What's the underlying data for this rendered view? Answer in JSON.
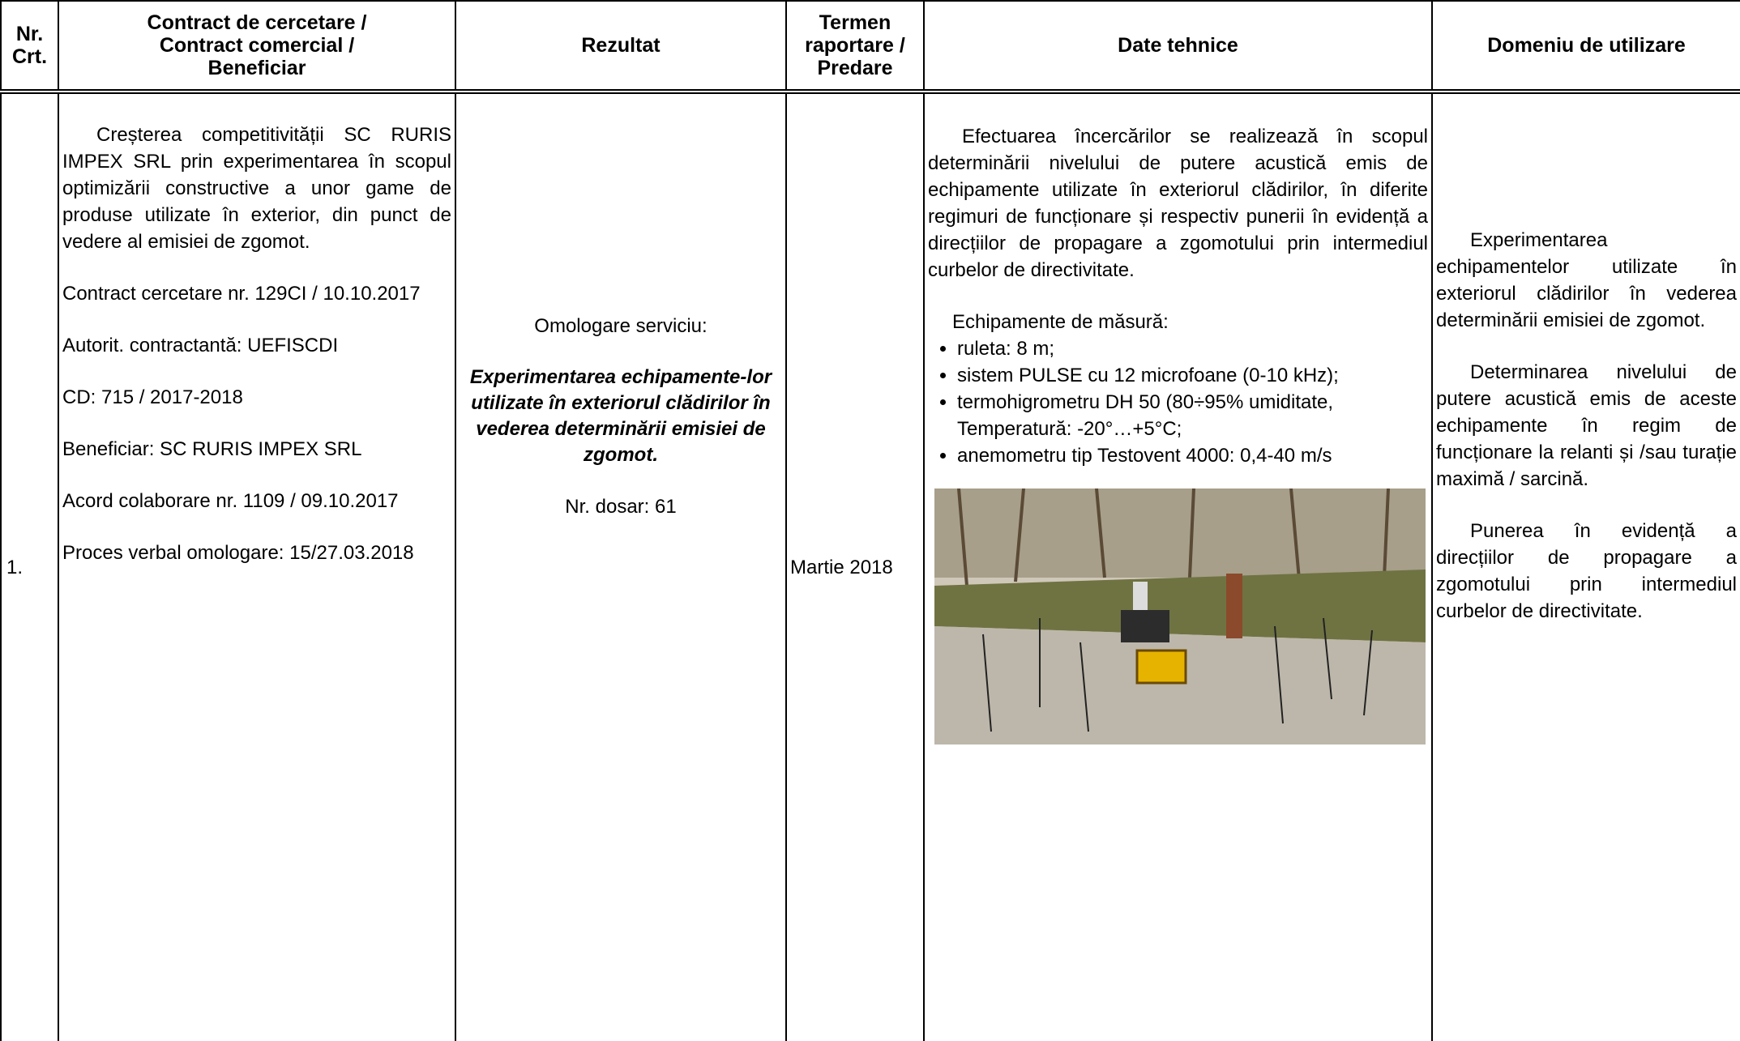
{
  "header": {
    "columns": [
      "Nr. Crt.",
      "Contract de cercetare / Contract comercial / Beneficiar",
      "Rezultat",
      "Termen raportare / Predare",
      "Date tehnice",
      "Domeniu de utilizare"
    ]
  },
  "row": {
    "number": "1.",
    "contract": [
      "Creșterea competitivității SC RURIS IMPEX SRL prin experimentarea în scopul optimizării constructive a unor game de produse utilizate în exterior, din punct de vedere al emisiei de zgomot.",
      "Contract cercetare nr. 129CI / 10.10.2017",
      "Autorit. contractantă: UEFISCDI",
      "CD: 715 / 2017-2018",
      "Beneficiar: SC RURIS IMPEX SRL",
      "Acord colaborare nr. 1109 / 09.10.2017",
      "Proces verbal omologare: 15/27.03.2018"
    ],
    "rezultat": {
      "label": "Omologare serviciu:",
      "title": "Experimentarea echipamente-lor utilizate în exteriorul clădirilor în vederea determinării emisiei de zgomot.",
      "dosar": "Nr. dosar: 61"
    },
    "termen": "Martie 2018",
    "date_tehnice": {
      "intro": "Efectuarea încercărilor se realizează în scopul determinării nivelului de putere acustică emis de echipamente utilizate în exteriorul clădirilor, în diferite regimuri de funcționare și respectiv punerii în evidență a direcțiilor de propagare a zgomotului prin intermediul curbelor de directivitate.",
      "equipment_title": "Echipamente de măsură:",
      "equipment": [
        "ruleta: 8 m;",
        "sistem PULSE cu 12 microfoane (0-10 kHz);",
        "termohigrometru DH 50 (80÷95% umiditate, Temperatură: -20°…+5°C;",
        "anemometru tip Testovent 4000: 0,4-40 m/s"
      ]
    },
    "domeniu": [
      "Experimentarea echipamentelor utilizate în exteriorul clădirilor în vederea determinării emisiei de zgomot.",
      "Determinarea nivelului de putere acustică emis de aceste echipamente în regim de funcționare la relanti și /sau turație maximă / sarcină.",
      "Punerea în evidență a direcțiilor de propagare a zgomotului prin intermediul curbelor de directivitate."
    ]
  }
}
